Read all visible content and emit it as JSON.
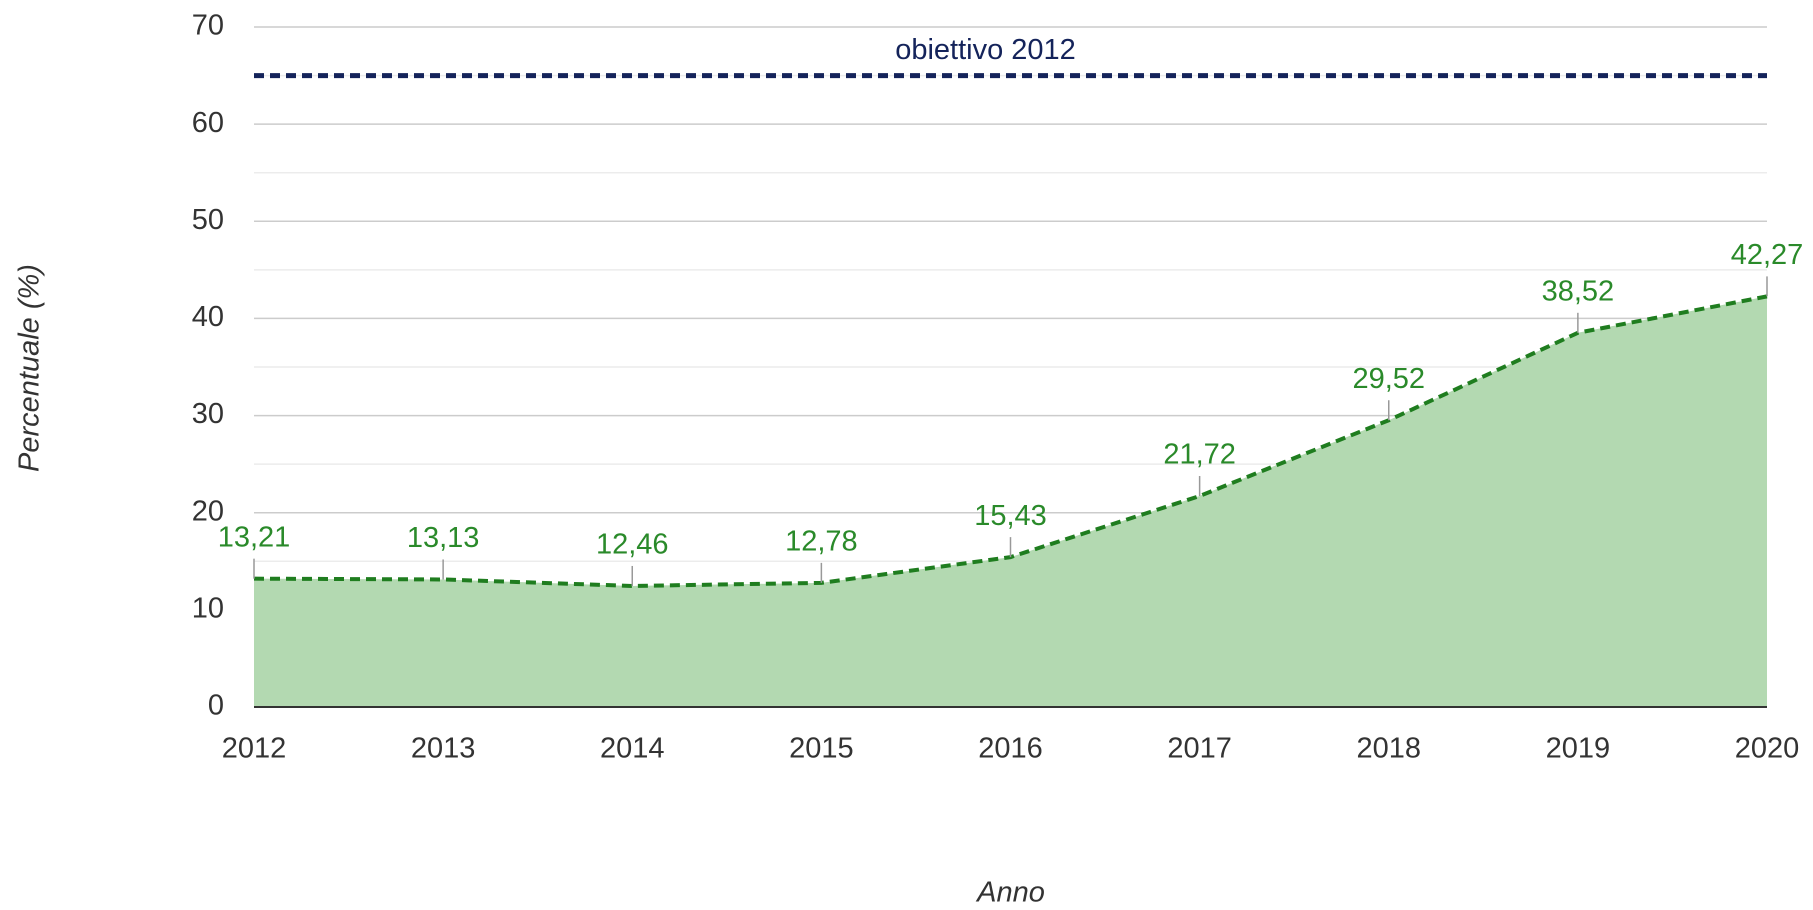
{
  "chart_data": {
    "type": "area",
    "x_label": "Anno",
    "y_label": "Percentuale (%)",
    "categories": [
      "2012",
      "2013",
      "2014",
      "2015",
      "2016",
      "2017",
      "2018",
      "2019",
      "2020"
    ],
    "series": [
      {
        "color": "#1f7d1f",
        "fill": "#b3d9b1",
        "values": [
          13.21,
          13.13,
          12.46,
          12.78,
          15.43,
          21.72,
          29.52,
          38.52,
          42.27
        ],
        "value_labels": [
          "13,21",
          "13,13",
          "12,46",
          "12,78",
          "15,43",
          "21,72",
          "29,52",
          "38,52",
          "42,27"
        ]
      }
    ],
    "reference_line": {
      "value": 65,
      "label": "obiettivo 2012",
      "color": "#14235a"
    },
    "ylim": [
      0,
      70
    ],
    "yticks": [
      0,
      10,
      20,
      30,
      40,
      50,
      60,
      70
    ],
    "yminorticks": [
      5,
      15,
      25,
      35,
      45,
      55,
      65
    ],
    "grid": true
  }
}
